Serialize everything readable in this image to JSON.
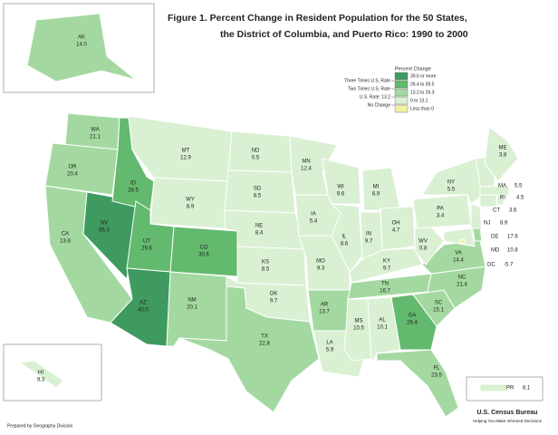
{
  "map": {
    "title_lines": [
      "Figure 1.  Percent Change in Resident Population for the 50 States,",
      "the District of Columbia, and Puerto Rico: 1990 to 2000"
    ],
    "legend": {
      "title": "Percent Change",
      "benchmarks": [
        "Three Times U.S. Rate",
        "Two Times U.S. Rate",
        "U.S. Rate: 13.2",
        "No Change"
      ],
      "items": [
        {
          "label": "39.6 or more",
          "color": "#3f9a5f",
          "from": 39.6
        },
        {
          "label": "26.4 to 39.5",
          "color": "#63b96e",
          "from": 26.4
        },
        {
          "label": "13.2 to 26.3",
          "color": "#a3d9a0",
          "from": 13.2
        },
        {
          "label": "0 to 13.1",
          "color": "#d9f0d2",
          "from": 0
        },
        {
          "label": "Less than 0",
          "color": "#f3f0a6"
        }
      ]
    },
    "states": {
      "names": [
        "AK",
        "WA",
        "OR",
        "CA",
        "NV",
        "ID",
        "MT",
        "WY",
        "UT",
        "AZ",
        "CO",
        "NM",
        "ND",
        "SD",
        "NE",
        "KS",
        "OK",
        "TX",
        "MN",
        "IA",
        "MO",
        "AR",
        "LA",
        "WI",
        "IL",
        "MI",
        "IN",
        "OH",
        "KY",
        "TN",
        "MS",
        "AL",
        "GA",
        "FL",
        "SC",
        "NC",
        "VA",
        "WV",
        "PA",
        "NY",
        "ME",
        "MA",
        "RI",
        "CT",
        "NJ",
        "DE",
        "MD",
        "DC",
        "HI",
        "PR"
      ],
      "values": [
        14.0,
        21.1,
        20.4,
        13.8,
        66.3,
        28.5,
        12.9,
        8.9,
        29.6,
        40.0,
        30.6,
        20.1,
        0.5,
        8.5,
        8.4,
        8.5,
        9.7,
        22.8,
        12.4,
        5.4,
        9.3,
        13.7,
        5.9,
        9.6,
        8.6,
        6.9,
        9.7,
        4.7,
        9.7,
        16.7,
        10.5,
        10.1,
        26.4,
        23.5,
        15.1,
        21.4,
        14.4,
        0.8,
        3.4,
        5.5,
        3.8,
        5.5,
        4.5,
        3.6,
        8.9,
        17.6,
        10.8,
        -5.7,
        9.3,
        8.1
      ],
      "value_labels": [
        "14.0",
        "21.1",
        "20.4",
        "13.8",
        "66.3",
        "28.5",
        "12.9",
        "8.9",
        "29.6",
        "40.0",
        "30.6",
        "20.1",
        "0.5",
        "8.5",
        "8.4",
        "8.5",
        "9.7",
        "22.8",
        "12.4",
        "5.4",
        "9.3",
        "13.7",
        "5.9",
        "9.6",
        "8.6",
        "6.9",
        "9.7",
        "4.7",
        "9.7",
        "16.7",
        "10.5",
        "10.1",
        "26.4",
        "23.5",
        "15.1",
        "21.4",
        "14.4",
        "0.8",
        "3.4",
        "5.5",
        "3.8",
        "5.5",
        "4.5",
        "3.6",
        "8.9",
        "17.6",
        "10.8",
        "-5.7",
        "9.3",
        "8.1"
      ]
    },
    "footer": "Prepared by Geography Division",
    "logo": {
      "name": "U.S. Census Bureau",
      "tagline": "Helping You Make Informed Decisions"
    }
  }
}
